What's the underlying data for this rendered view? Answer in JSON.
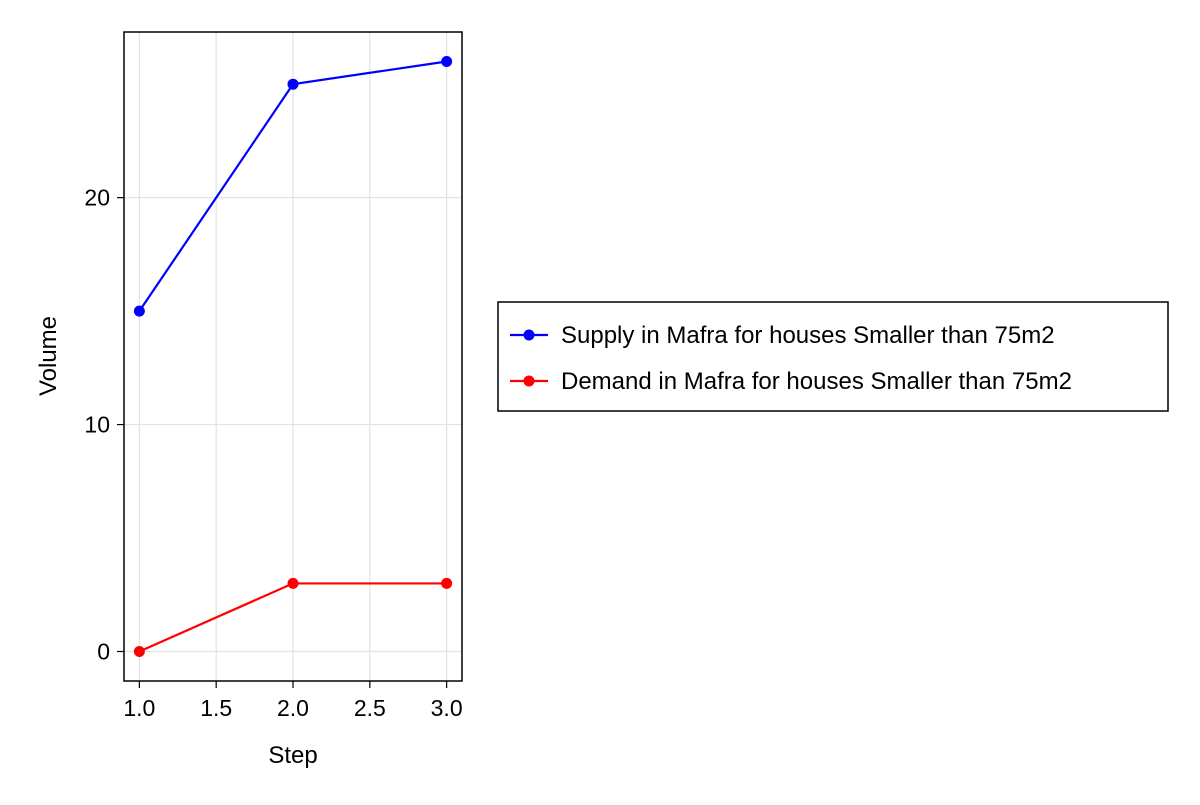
{
  "chart_data": {
    "type": "line",
    "title": "",
    "xlabel": "Step",
    "ylabel": "Volume",
    "xlim": [
      0.9,
      3.1
    ],
    "ylim": [
      -1.3,
      27.3
    ],
    "xticks": [
      1.0,
      1.5,
      2.0,
      2.5,
      3.0
    ],
    "xtick_labels": [
      "1.0",
      "1.5",
      "2.0",
      "2.5",
      "3.0"
    ],
    "yticks": [
      0,
      10,
      20
    ],
    "ytick_labels": [
      "0",
      "10",
      "20"
    ],
    "grid": true,
    "legend_position": "right",
    "x": [
      1.0,
      2.0,
      3.0
    ],
    "series": [
      {
        "name": "Supply in Mafra for houses Smaller than 75m2",
        "color": "#0000ff",
        "values": [
          15,
          25,
          26
        ]
      },
      {
        "name": "Demand in Mafra for houses Smaller than 75m2",
        "color": "#ff0000",
        "values": [
          0,
          3,
          3
        ]
      }
    ]
  }
}
